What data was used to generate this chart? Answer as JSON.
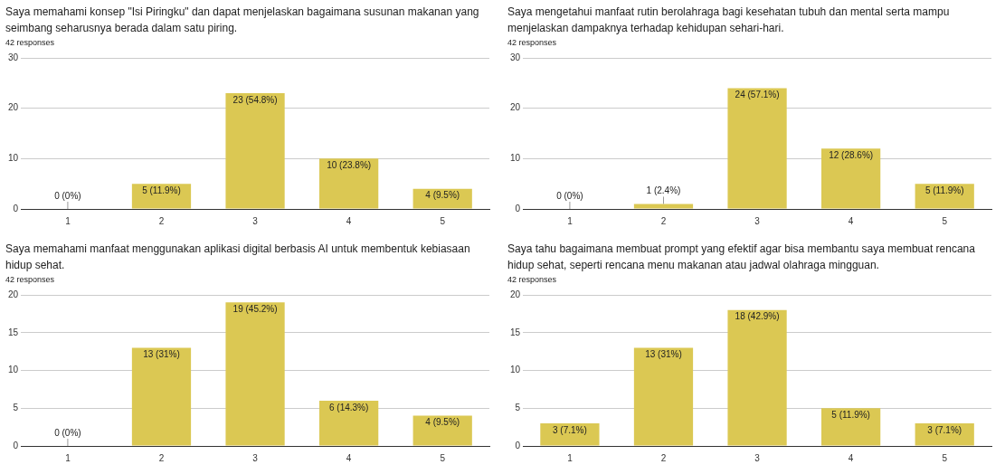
{
  "chart_data": [
    {
      "type": "bar",
      "title": "Saya memahami konsep \"Isi Piringku\" dan dapat menjelaskan bagaimana susunan makanan yang seimbang seharusnya berada dalam satu piring.",
      "subtitle": "42 responses",
      "categories": [
        "1",
        "2",
        "3",
        "4",
        "5"
      ],
      "values": [
        0,
        5,
        23,
        10,
        4
      ],
      "value_labels": [
        "0 (0%)",
        "5 (11.9%)",
        "23 (54.8%)",
        "10 (23.8%)",
        "4 (9.5%)"
      ],
      "color": "#dbc853",
      "ylim": [
        0,
        30
      ],
      "yticks": [
        0,
        10,
        20,
        30
      ],
      "grid": "y",
      "legend": false
    },
    {
      "type": "bar",
      "title": "Saya mengetahui manfaat rutin berolahraga bagi kesehatan tubuh dan mental serta mampu menjelaskan dampaknya terhadap kehidupan sehari-hari.",
      "subtitle": "42 responses",
      "categories": [
        "1",
        "2",
        "3",
        "4",
        "5"
      ],
      "values": [
        0,
        1,
        24,
        12,
        5
      ],
      "value_labels": [
        "0 (0%)",
        "1 (2.4%)",
        "24 (57.1%)",
        "12 (28.6%)",
        "5 (11.9%)"
      ],
      "color": "#dbc853",
      "ylim": [
        0,
        30
      ],
      "yticks": [
        0,
        10,
        20,
        30
      ],
      "grid": "y",
      "legend": false
    },
    {
      "type": "bar",
      "title": "Saya memahami manfaat menggunakan aplikasi digital berbasis AI untuk membentuk kebiasaan hidup sehat.",
      "subtitle": "42 responses",
      "categories": [
        "1",
        "2",
        "3",
        "4",
        "5"
      ],
      "values": [
        0,
        13,
        19,
        6,
        4
      ],
      "value_labels": [
        "0 (0%)",
        "13 (31%)",
        "19 (45.2%)",
        "6 (14.3%)",
        "4 (9.5%)"
      ],
      "color": "#dbc853",
      "ylim": [
        0,
        20
      ],
      "yticks": [
        0,
        5,
        10,
        15,
        20
      ],
      "grid": "y",
      "legend": false
    },
    {
      "type": "bar",
      "title": "Saya tahu bagaimana membuat prompt yang efektif agar bisa membantu saya membuat rencana hidup sehat, seperti rencana menu makanan atau jadwal olahraga mingguan.",
      "subtitle": "42 responses",
      "categories": [
        "1",
        "2",
        "3",
        "4",
        "5"
      ],
      "values": [
        3,
        13,
        18,
        5,
        3
      ],
      "value_labels": [
        "3 (7.1%)",
        "13 (31%)",
        "18 (42.9%)",
        "5 (11.9%)",
        "3 (7.1%)"
      ],
      "color": "#dbc853",
      "ylim": [
        0,
        20
      ],
      "yticks": [
        0,
        5,
        10,
        15,
        20
      ],
      "grid": "y",
      "legend": false
    }
  ]
}
